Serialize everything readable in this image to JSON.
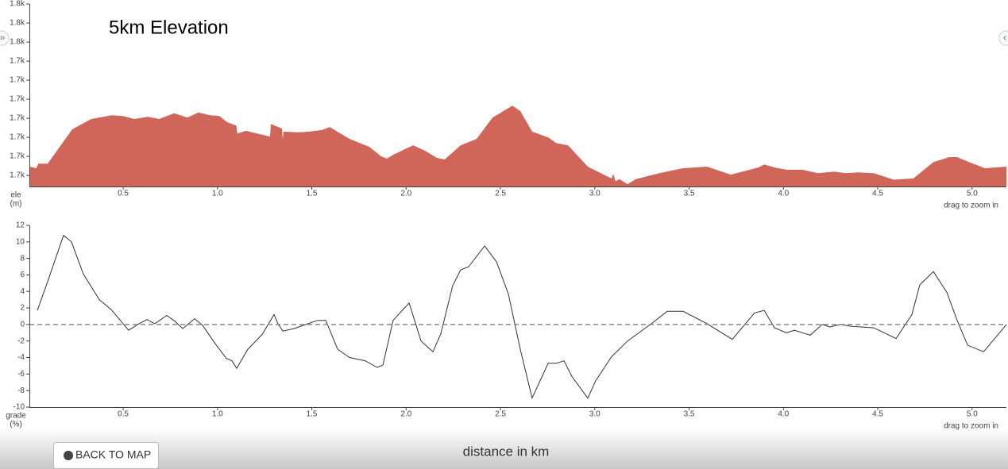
{
  "chart_data": [
    {
      "type": "area",
      "title": "5km Elevation",
      "y_label_lines": [
        "ele",
        "(m)"
      ],
      "note": "drag to zoom in",
      "color": "#d0655a",
      "xlim": [
        0.003,
        5.182
      ],
      "ylim": [
        1712.1,
        1760
      ],
      "xticks": [
        0.5,
        {
          "value": 1,
          "label": "1.0"
        },
        1.5,
        {
          "value": 2,
          "label": "2.0"
        },
        2.5,
        {
          "value": 3,
          "label": "3.0"
        },
        3.5,
        {
          "value": 4,
          "label": "4.0"
        },
        4.5,
        {
          "value": 5,
          "label": "5.0"
        }
      ],
      "yticks": [
        {
          "value": 1760,
          "label": "1.8k"
        },
        {
          "value": 1755,
          "label": "1.8k"
        },
        {
          "value": 1750,
          "label": "1.8k"
        },
        {
          "value": 1745,
          "label": "1.7k"
        },
        {
          "value": 1740,
          "label": "1.7k"
        },
        {
          "value": 1735,
          "label": "1.7k"
        },
        {
          "value": 1730,
          "label": "1.7k"
        },
        {
          "value": 1725,
          "label": "1.7k"
        },
        {
          "value": 1720,
          "label": "1.7k"
        },
        {
          "value": 1715,
          "label": "1.7k"
        }
      ],
      "x": [
        0.003,
        0.04,
        0.05,
        0.1,
        0.23,
        0.33,
        0.44,
        0.5,
        0.56,
        0.63,
        0.69,
        0.77,
        0.84,
        0.9,
        0.96,
        1.01,
        1.05,
        1.1,
        1.105,
        1.15,
        1.279,
        1.283,
        1.342,
        1.346,
        1.35,
        1.426,
        1.489,
        1.553,
        1.595,
        1.7,
        1.805,
        1.868,
        1.898,
        1.931,
        2.037,
        2.1,
        2.163,
        2.205,
        2.289,
        2.374,
        2.458,
        2.563,
        2.605,
        2.668,
        2.753,
        2.795,
        2.858,
        2.963,
        3.089,
        3.098,
        3.11,
        3.131,
        3.174,
        3.216,
        3.342,
        3.468,
        3.595,
        3.721,
        3.868,
        3.898,
        3.953,
        4.016,
        4.1,
        4.184,
        4.268,
        4.332,
        4.395,
        4.479,
        4.584,
        4.689,
        4.795,
        4.879,
        4.921,
        4.984,
        5.068,
        5.182
      ],
      "values": [
        1717.3,
        1716.9,
        1718.1,
        1718.1,
        1727.1,
        1729.8,
        1730.8,
        1730.6,
        1729.8,
        1730.4,
        1729.8,
        1731.3,
        1730.2,
        1731.5,
        1730.8,
        1730.6,
        1729.0,
        1728.1,
        1726.0,
        1726.7,
        1725.2,
        1728.5,
        1727.3,
        1724.4,
        1726.5,
        1726.3,
        1726.5,
        1726.9,
        1727.7,
        1724.6,
        1722.5,
        1720.0,
        1719.4,
        1720.4,
        1722.9,
        1721.5,
        1719.6,
        1719.2,
        1722.9,
        1724.6,
        1730.2,
        1733.3,
        1731.9,
        1726.5,
        1725.0,
        1723.5,
        1722.9,
        1717.3,
        1714.2,
        1715.4,
        1713.5,
        1714.0,
        1712.7,
        1714.0,
        1715.6,
        1716.9,
        1717.3,
        1715.2,
        1717.1,
        1717.9,
        1717.1,
        1716.5,
        1716.5,
        1715.6,
        1716.0,
        1715.6,
        1715.8,
        1715.6,
        1713.9,
        1714.2,
        1718.5,
        1719.8,
        1719.8,
        1718.5,
        1716.9,
        1717.3
      ]
    },
    {
      "type": "line",
      "y_label_lines": [
        "grade",
        "(%)"
      ],
      "note": "drag to zoom in",
      "color": "#333333",
      "reference_line": 0,
      "xlim": [
        0.003,
        5.182
      ],
      "ylim": [
        -10,
        12
      ],
      "xticks": [
        0.5,
        {
          "value": 1,
          "label": "1.0"
        },
        1.5,
        {
          "value": 2,
          "label": "2.0"
        },
        2.5,
        {
          "value": 3,
          "label": "3.0"
        },
        3.5,
        {
          "value": 4,
          "label": "4.0"
        },
        4.5,
        {
          "value": 5,
          "label": "5.0"
        }
      ],
      "yticks": [
        12,
        10,
        8,
        6,
        4,
        2,
        0,
        -2,
        -4,
        -6,
        -8,
        -10
      ],
      "x": [
        0.045,
        0.1,
        0.184,
        0.226,
        0.289,
        0.374,
        0.437,
        0.529,
        0.584,
        0.626,
        0.668,
        0.731,
        0.774,
        0.816,
        0.879,
        0.921,
        0.984,
        1.047,
        1.077,
        1.102,
        1.161,
        1.237,
        1.3,
        1.321,
        1.346,
        1.405,
        1.468,
        1.532,
        1.574,
        1.637,
        1.7,
        1.784,
        1.847,
        1.877,
        1.931,
        2.016,
        2.079,
        2.142,
        2.184,
        2.247,
        2.289,
        2.332,
        2.416,
        2.479,
        2.542,
        2.605,
        2.668,
        2.753,
        2.795,
        2.837,
        2.879,
        2.963,
        3.005,
        3.089,
        3.174,
        3.3,
        3.384,
        3.468,
        3.595,
        3.729,
        3.847,
        3.898,
        3.953,
        4.016,
        4.058,
        4.142,
        4.205,
        4.247,
        4.302,
        4.353,
        4.479,
        4.597,
        4.681,
        4.723,
        4.795,
        4.866,
        4.921,
        4.976,
        5.061,
        5.182
      ],
      "values": [
        1.7,
        5.2,
        10.8,
        10.0,
        6.1,
        3.0,
        1.8,
        -0.7,
        0.1,
        0.6,
        0.1,
        1.1,
        0.4,
        -0.5,
        0.7,
        -0.1,
        -2.2,
        -4.1,
        -4.4,
        -5.3,
        -3.0,
        -1.2,
        1.2,
        0.1,
        -0.8,
        -0.5,
        0,
        0.5,
        0.5,
        -3.0,
        -4.0,
        -4.4,
        -5.2,
        -4.9,
        0.5,
        2.6,
        -2.0,
        -3.3,
        -1.1,
        4.7,
        6.6,
        7.0,
        9.5,
        7.6,
        3.7,
        -3.0,
        -8.9,
        -4.7,
        -4.7,
        -4.4,
        -6.3,
        -8.9,
        -6.8,
        -3.9,
        -2.0,
        0.1,
        1.6,
        1.6,
        0.1,
        -1.8,
        1.4,
        1.7,
        -0.4,
        -1.0,
        -0.7,
        -1.3,
        0,
        -0.3,
        0,
        -0.2,
        -0.4,
        -1.7,
        1.2,
        4.8,
        6.4,
        3.9,
        0.5,
        -2.5,
        -3.3,
        0
      ]
    }
  ],
  "x_axis_label": "distance in km",
  "back_button": "BACK TO MAP"
}
